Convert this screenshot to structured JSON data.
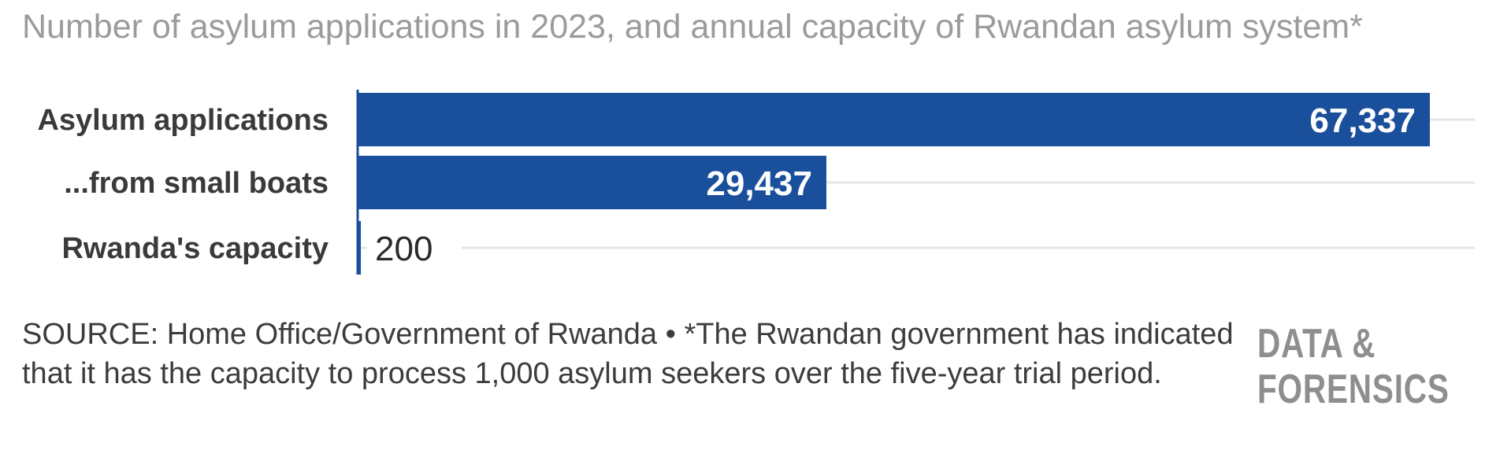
{
  "title": "Number of asylum applications in 2023, and annual capacity of Rwandan asylum system*",
  "chart_data": {
    "type": "bar",
    "orientation": "horizontal",
    "categories": [
      "Asylum applications",
      "...from small boats",
      "Rwanda's capacity"
    ],
    "values": [
      67337,
      29437,
      200
    ],
    "value_labels": [
      "67,337",
      "29,437",
      "200"
    ],
    "xlim": [
      0,
      68000
    ],
    "grid": true,
    "bar_color": "#1a4f9c"
  },
  "footnote": "SOURCE: Home Office/Government of Rwanda • *The Rwandan government has indicated that it has the capacity to process 1,000 asylum seekers over the five-year trial period.",
  "brand": {
    "line1": "DATA &",
    "line2": "FORENSICS"
  }
}
